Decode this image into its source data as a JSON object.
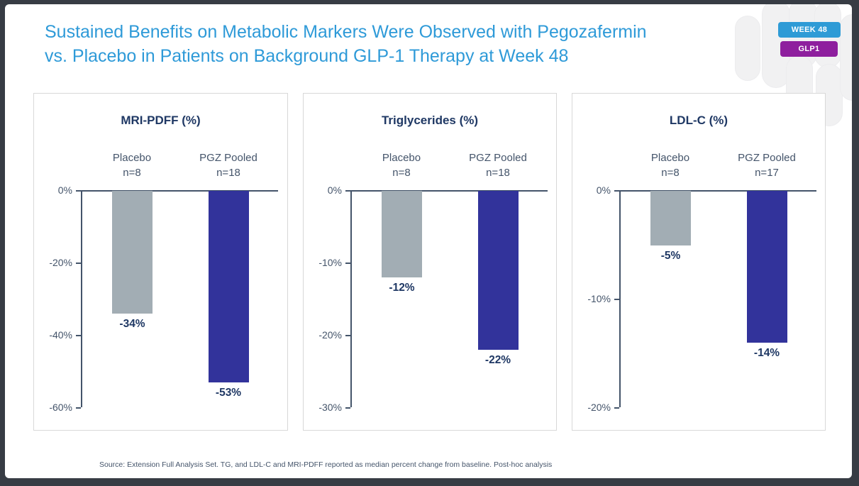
{
  "slide": {
    "title_lines": [
      "Sustained Benefits on Metabolic Markers Were Observed with Pegozafermin",
      "vs. Placebo in Patients on Background GLP-1 Therapy at Week 48"
    ],
    "title_color": "#2E9AD8",
    "badges": [
      {
        "label": "WEEK 48",
        "color": "#2E9BD6"
      },
      {
        "label": "GLP1",
        "color": "#8E1F9E"
      }
    ],
    "source": "Source: Extension Full Analysis Set. TG, and LDL-C and MRI-PDFF reported as median percent change from baseline. Post-hoc analysis"
  },
  "colors": {
    "placebo_bar": "#A2ADB4",
    "pgz_bar": "#32339B",
    "axis": "#44546A",
    "navy_text": "#1F3864",
    "frame": "#373C44"
  },
  "chart_data": [
    {
      "type": "bar",
      "title": "MRI-PDFF (%)",
      "ylabel": "",
      "xlabel": "",
      "ylim": [
        -60,
        0
      ],
      "yticks": [
        0,
        -20,
        -40,
        -60
      ],
      "ytick_labels": [
        "0%",
        "-20%",
        "-40%",
        "-60%"
      ],
      "grid": false,
      "legend": false,
      "groups": [
        {
          "label": "Placebo",
          "n": "n=8",
          "value": -34,
          "value_label": "-34%",
          "color": "#A2ADB4"
        },
        {
          "label": "PGZ Pooled",
          "n": "n=18",
          "value": -53,
          "value_label": "-53%",
          "color": "#32339B"
        }
      ]
    },
    {
      "type": "bar",
      "title": "Triglycerides (%)",
      "ylabel": "",
      "xlabel": "",
      "ylim": [
        -30,
        0
      ],
      "yticks": [
        0,
        -10,
        -20,
        -30
      ],
      "ytick_labels": [
        "0%",
        "-10%",
        "-20%",
        "-30%"
      ],
      "grid": false,
      "legend": false,
      "groups": [
        {
          "label": "Placebo",
          "n": "n=8",
          "value": -12,
          "value_label": "-12%",
          "color": "#A2ADB4"
        },
        {
          "label": "PGZ Pooled",
          "n": "n=18",
          "value": -22,
          "value_label": "-22%",
          "color": "#32339B"
        }
      ]
    },
    {
      "type": "bar",
      "title": "LDL-C (%)",
      "ylabel": "",
      "xlabel": "",
      "ylim": [
        -20,
        0
      ],
      "yticks": [
        0,
        -10,
        -20
      ],
      "ytick_labels": [
        "0%",
        "-10%",
        "-20%"
      ],
      "grid": false,
      "legend": false,
      "groups": [
        {
          "label": "Placebo",
          "n": "n=8",
          "value": -5,
          "value_label": "-5%",
          "color": "#A2ADB4"
        },
        {
          "label": "PGZ Pooled",
          "n": "n=17",
          "value": -14,
          "value_label": "-14%",
          "color": "#32339B"
        }
      ]
    }
  ]
}
